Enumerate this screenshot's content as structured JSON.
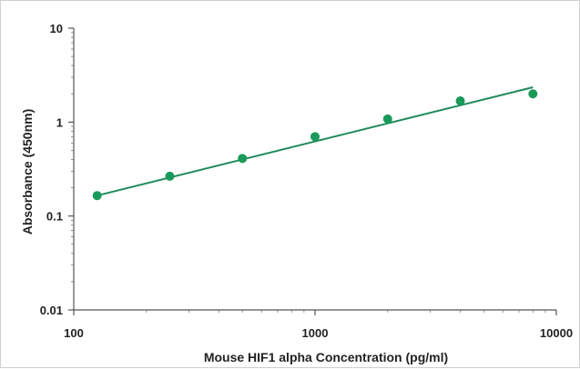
{
  "chart_data": {
    "type": "scatter",
    "title": "",
    "xlabel": "Mouse HIF1 alpha Concentration (pg/ml)",
    "ylabel": "Absorbance (450nm)",
    "x_scale": "log",
    "y_scale": "log",
    "xlim": [
      100,
      10000
    ],
    "ylim": [
      0.01,
      10
    ],
    "x_ticks": [
      "100",
      "1000",
      "10000"
    ],
    "y_ticks": [
      "0.01",
      "0.1",
      "1",
      "10"
    ],
    "grid": false,
    "series": [
      {
        "points": [
          {
            "x": 125,
            "y": 0.165
          },
          {
            "x": 250,
            "y": 0.265
          },
          {
            "x": 500,
            "y": 0.41
          },
          {
            "x": 1000,
            "y": 0.7
          },
          {
            "x": 2000,
            "y": 1.08
          },
          {
            "x": 4000,
            "y": 1.68
          },
          {
            "x": 8000,
            "y": 2.0
          }
        ],
        "color": "#1a9a5a"
      }
    ],
    "trendline": {
      "type": "power",
      "from": {
        "x": 125,
        "y": 0.165
      },
      "to": {
        "x": 8000,
        "y": 2.35
      },
      "color": "#1f8a5c"
    }
  }
}
